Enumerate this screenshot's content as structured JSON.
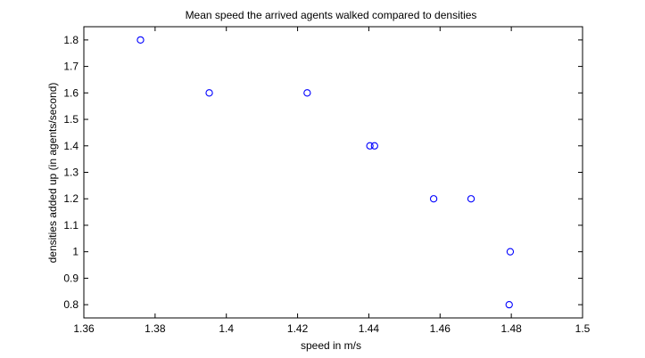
{
  "chart_data": {
    "type": "scatter",
    "title": "Mean speed the arrived agents walked compared to densities",
    "xlabel": "speed in m/s",
    "ylabel": "densities added up (in agents/second)",
    "xlim": [
      1.36,
      1.5
    ],
    "ylim": [
      0.75,
      1.85
    ],
    "xticks": [
      1.36,
      1.38,
      1.4,
      1.42,
      1.44,
      1.46,
      1.48,
      1.5
    ],
    "xtick_labels": [
      "1.36",
      "1.38",
      "1.4",
      "1.42",
      "1.44",
      "1.46",
      "1.48",
      "1.5"
    ],
    "yticks": [
      0.8,
      0.9,
      1.0,
      1.1,
      1.2,
      1.3,
      1.4,
      1.5,
      1.6,
      1.7,
      1.8
    ],
    "ytick_labels": [
      "0.8",
      "0.9",
      "1",
      "1.1",
      "1.2",
      "1.3",
      "1.4",
      "1.5",
      "1.6",
      "1.7",
      "1.8"
    ],
    "grid": false,
    "marker": "open-circle",
    "marker_color": "#0000ff",
    "points": [
      {
        "x": 1.3759,
        "y": 1.8
      },
      {
        "x": 1.3952,
        "y": 1.6
      },
      {
        "x": 1.4227,
        "y": 1.6
      },
      {
        "x": 1.4403,
        "y": 1.4
      },
      {
        "x": 1.4416,
        "y": 1.4
      },
      {
        "x": 1.4582,
        "y": 1.2
      },
      {
        "x": 1.4687,
        "y": 1.2
      },
      {
        "x": 1.4797,
        "y": 1.0
      },
      {
        "x": 1.4794,
        "y": 0.8
      }
    ]
  }
}
